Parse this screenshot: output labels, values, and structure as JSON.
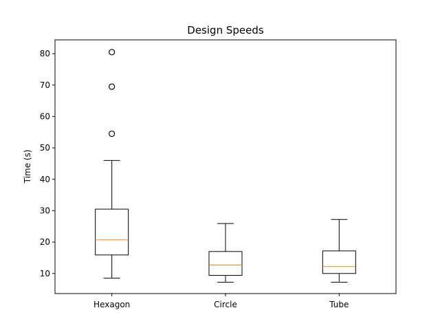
{
  "chart_data": {
    "type": "box",
    "title": "Design Speeds",
    "xlabel": "",
    "ylabel": "Time (s)",
    "ylim": [
      3.6,
      84.4
    ],
    "yticks": [
      10,
      20,
      30,
      40,
      50,
      60,
      70,
      80
    ],
    "grid": false,
    "categories": [
      "Hexagon",
      "Circle",
      "Tube"
    ],
    "boxes": [
      {
        "label": "Hexagon",
        "whisker_low": 8.5,
        "q1": 15.9,
        "median": 20.7,
        "q3": 30.5,
        "whisker_high": 46.0,
        "outliers": [
          54.5,
          69.5,
          80.5
        ]
      },
      {
        "label": "Circle",
        "whisker_low": 7.2,
        "q1": 9.4,
        "median": 12.7,
        "q3": 17.0,
        "whisker_high": 25.9,
        "outliers": []
      },
      {
        "label": "Tube",
        "whisker_low": 7.2,
        "q1": 10.0,
        "median": 12.2,
        "q3": 17.2,
        "whisker_high": 27.2,
        "outliers": []
      }
    ],
    "colors": {
      "box": "#000000",
      "median": "#ff7f0e",
      "outlier": "#000000"
    }
  }
}
